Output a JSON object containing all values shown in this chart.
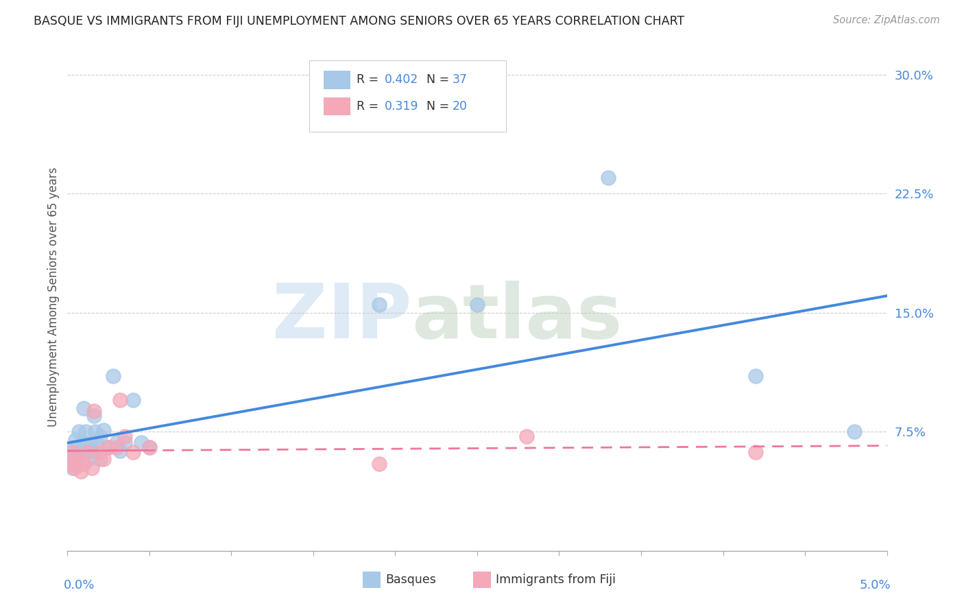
{
  "title": "BASQUE VS IMMIGRANTS FROM FIJI UNEMPLOYMENT AMONG SENIORS OVER 65 YEARS CORRELATION CHART",
  "source": "Source: ZipAtlas.com",
  "ylabel": "Unemployment Among Seniors over 65 years",
  "xlim": [
    0.0,
    0.05
  ],
  "ylim": [
    0.0,
    0.32
  ],
  "ytick_vals": [
    0.075,
    0.15,
    0.225,
    0.3
  ],
  "ytick_labels": [
    "7.5%",
    "15.0%",
    "22.5%",
    "30.0%"
  ],
  "basque_color": "#a8c8e8",
  "fiji_color": "#f4a8b8",
  "line_blue": "#4488dd",
  "line_pink": "#ee7799",
  "basque_x": [
    0.0002,
    0.0003,
    0.0003,
    0.0004,
    0.0004,
    0.0005,
    0.0005,
    0.0006,
    0.0007,
    0.0008,
    0.0009,
    0.001,
    0.001,
    0.0011,
    0.0012,
    0.0013,
    0.0014,
    0.0015,
    0.0016,
    0.0017,
    0.0018,
    0.002,
    0.002,
    0.0022,
    0.0025,
    0.0028,
    0.003,
    0.0032,
    0.0035,
    0.004,
    0.0045,
    0.005,
    0.019,
    0.025,
    0.033,
    0.042,
    0.048
  ],
  "basque_y": [
    0.055,
    0.06,
    0.052,
    0.058,
    0.065,
    0.06,
    0.07,
    0.055,
    0.075,
    0.062,
    0.065,
    0.09,
    0.068,
    0.075,
    0.062,
    0.058,
    0.065,
    0.063,
    0.085,
    0.075,
    0.068,
    0.072,
    0.058,
    0.076,
    0.065,
    0.11,
    0.068,
    0.063,
    0.068,
    0.095,
    0.068,
    0.065,
    0.155,
    0.155,
    0.235,
    0.11,
    0.075
  ],
  "fiji_x": [
    0.0002,
    0.0003,
    0.0004,
    0.0006,
    0.0008,
    0.001,
    0.0012,
    0.0015,
    0.0016,
    0.002,
    0.0022,
    0.0025,
    0.003,
    0.0032,
    0.0035,
    0.004,
    0.005,
    0.019,
    0.028,
    0.042
  ],
  "fiji_y": [
    0.055,
    0.062,
    0.052,
    0.058,
    0.05,
    0.055,
    0.062,
    0.052,
    0.088,
    0.062,
    0.058,
    0.065,
    0.065,
    0.095,
    0.072,
    0.062,
    0.065,
    0.055,
    0.072,
    0.062
  ]
}
